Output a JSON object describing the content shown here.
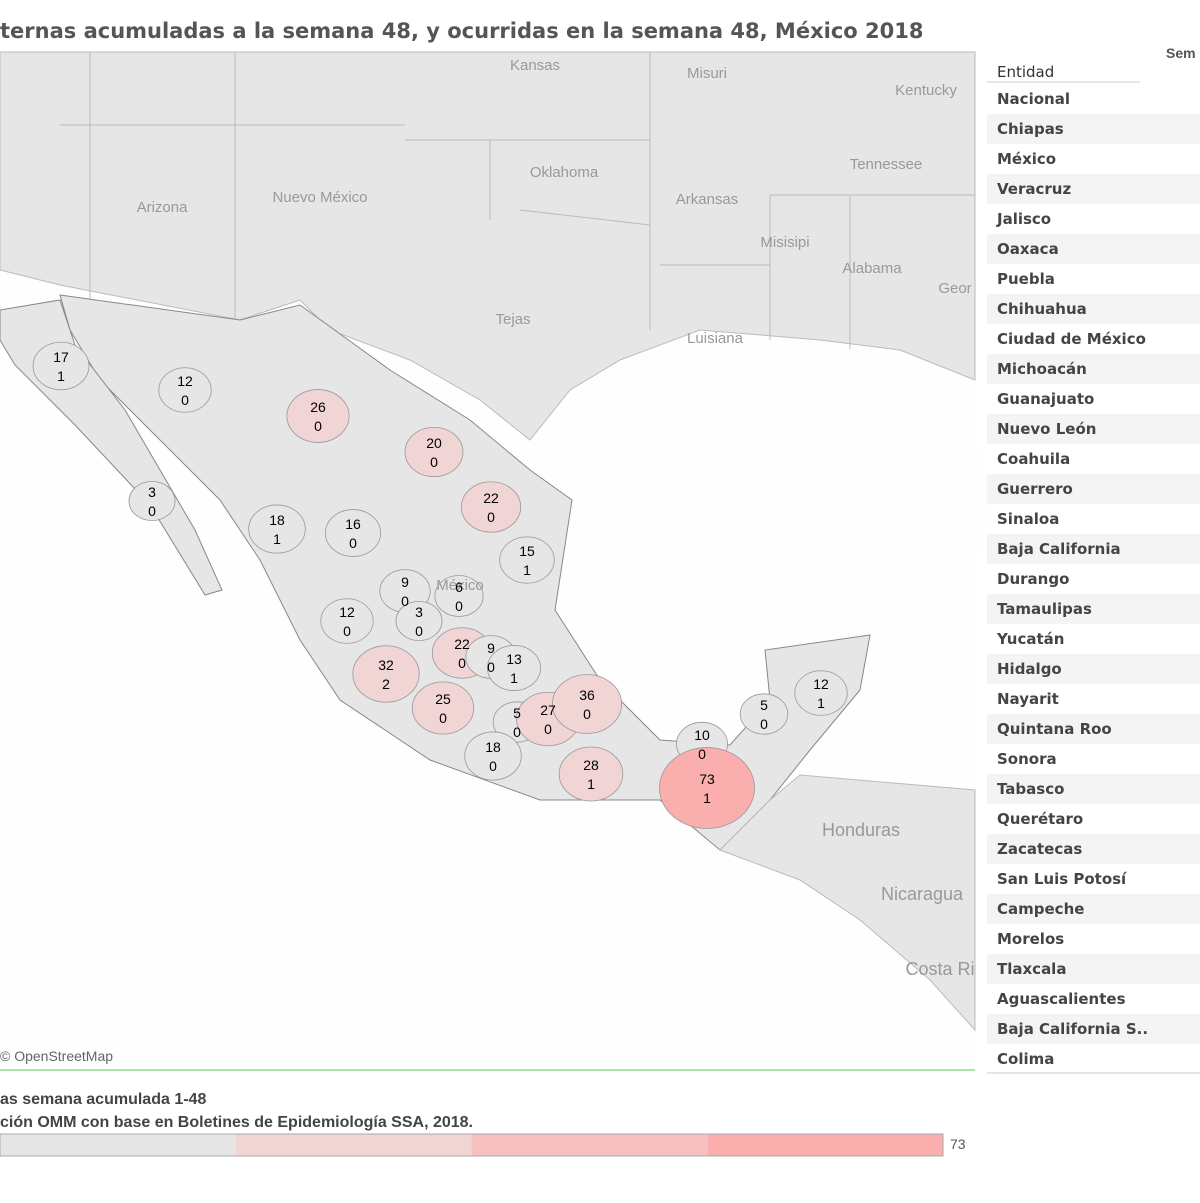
{
  "title": "ternas acumuladas a la semana 48, y ocurridas en la semana 48, México 2018",
  "map": {
    "attribution": "© OpenStreetMap",
    "places": [
      "Kansas",
      "Misuri",
      "Kentucky",
      "Oklahoma",
      "Tennessee",
      "Arizona",
      "Nuevo México",
      "Arkansas",
      "Misisipi",
      "Alabama",
      "Geor",
      "Tejas",
      "Luisiana",
      "México",
      "Honduras",
      "Nicaragua",
      "Costa Ri"
    ],
    "states": [
      {
        "name": "Baja California",
        "accumulated": 17,
        "week": 1
      },
      {
        "name": "Sonora",
        "accumulated": 12,
        "week": 0
      },
      {
        "name": "Chihuahua",
        "accumulated": 26,
        "week": 0
      },
      {
        "name": "Coahuila",
        "accumulated": 20,
        "week": 0
      },
      {
        "name": "Nuevo León",
        "accumulated": 22,
        "week": 0
      },
      {
        "name": "Baja California Sur",
        "accumulated": 3,
        "week": 0
      },
      {
        "name": "Sinaloa",
        "accumulated": 18,
        "week": 1
      },
      {
        "name": "Durango",
        "accumulated": 16,
        "week": 0
      },
      {
        "name": "Tamaulipas",
        "accumulated": 15,
        "week": 1
      },
      {
        "name": "Zacatecas",
        "accumulated": 9,
        "week": 0
      },
      {
        "name": "San Luis Potosí",
        "accumulated": 6,
        "week": 0
      },
      {
        "name": "Nayarit",
        "accumulated": 12,
        "week": 0
      },
      {
        "name": "Aguascalientes",
        "accumulated": 3,
        "week": 0
      },
      {
        "name": "Guanajuato",
        "accumulated": 22,
        "week": 0
      },
      {
        "name": "Querétaro",
        "accumulated": 9,
        "week": 0
      },
      {
        "name": "Hidalgo",
        "accumulated": 13,
        "week": 1
      },
      {
        "name": "Jalisco",
        "accumulated": 32,
        "week": 2
      },
      {
        "name": "Michoacán",
        "accumulated": 25,
        "week": 0
      },
      {
        "name": "Morelos",
        "accumulated": 5,
        "week": 0
      },
      {
        "name": "Puebla",
        "accumulated": 27,
        "week": 0
      },
      {
        "name": "Veracruz",
        "accumulated": 36,
        "week": 0
      },
      {
        "name": "Guerrero",
        "accumulated": 18,
        "week": 0
      },
      {
        "name": "Oaxaca",
        "accumulated": 28,
        "week": 1
      },
      {
        "name": "Tabasco",
        "accumulated": 10,
        "week": 0
      },
      {
        "name": "Campeche",
        "accumulated": 5,
        "week": 0
      },
      {
        "name": "Yucatán",
        "accumulated": 12,
        "week": 1
      },
      {
        "name": "Chiapas",
        "accumulated": 73,
        "week": 1
      }
    ]
  },
  "footer": {
    "line1": "as semana acumulada 1-48",
    "line2": "ción OMM con base en Boletines de Epidemiología SSA, 2018."
  },
  "legend": {
    "max": 73,
    "colors": [
      "#e6e6e6",
      "#f1d4d4",
      "#f6c0c0",
      "#fbaeae"
    ]
  },
  "table": {
    "headers": [
      "Entidad",
      "Sem"
    ],
    "rows": [
      "Nacional",
      "Chiapas",
      "México",
      "Veracruz",
      "Jalisco",
      "Oaxaca",
      "Puebla",
      "Chihuahua",
      "Ciudad de México",
      "Michoacán",
      "Guanajuato",
      "Nuevo León",
      "Coahuila",
      "Guerrero",
      "Sinaloa",
      "Baja California",
      "Durango",
      "Tamaulipas",
      "Yucatán",
      "Hidalgo",
      "Nayarit",
      "Quintana Roo",
      "Sonora",
      "Tabasco",
      "Querétaro",
      "Zacatecas",
      "San Luis Potosí",
      "Campeche",
      "Morelos",
      "Tlaxcala",
      "Aguascalientes",
      "Baja California S..",
      "Colima"
    ]
  }
}
